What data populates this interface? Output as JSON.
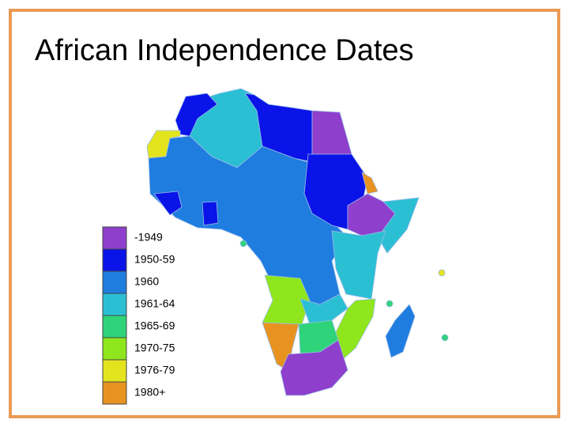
{
  "title": "African Independence Dates",
  "legend": [
    {
      "label": "-1949",
      "color": "#8e3fcc"
    },
    {
      "label": "1950-59",
      "color": "#0a14e8"
    },
    {
      "label": "1960",
      "color": "#1f7de0"
    },
    {
      "label": "1961-64",
      "color": "#2bbfd4"
    },
    {
      "label": "1965-69",
      "color": "#2fd47a"
    },
    {
      "label": "1970-75",
      "color": "#8fe61c"
    },
    {
      "label": "1976-79",
      "color": "#e4e41e"
    },
    {
      "label": "1980+",
      "color": "#e8931f"
    }
  ]
}
